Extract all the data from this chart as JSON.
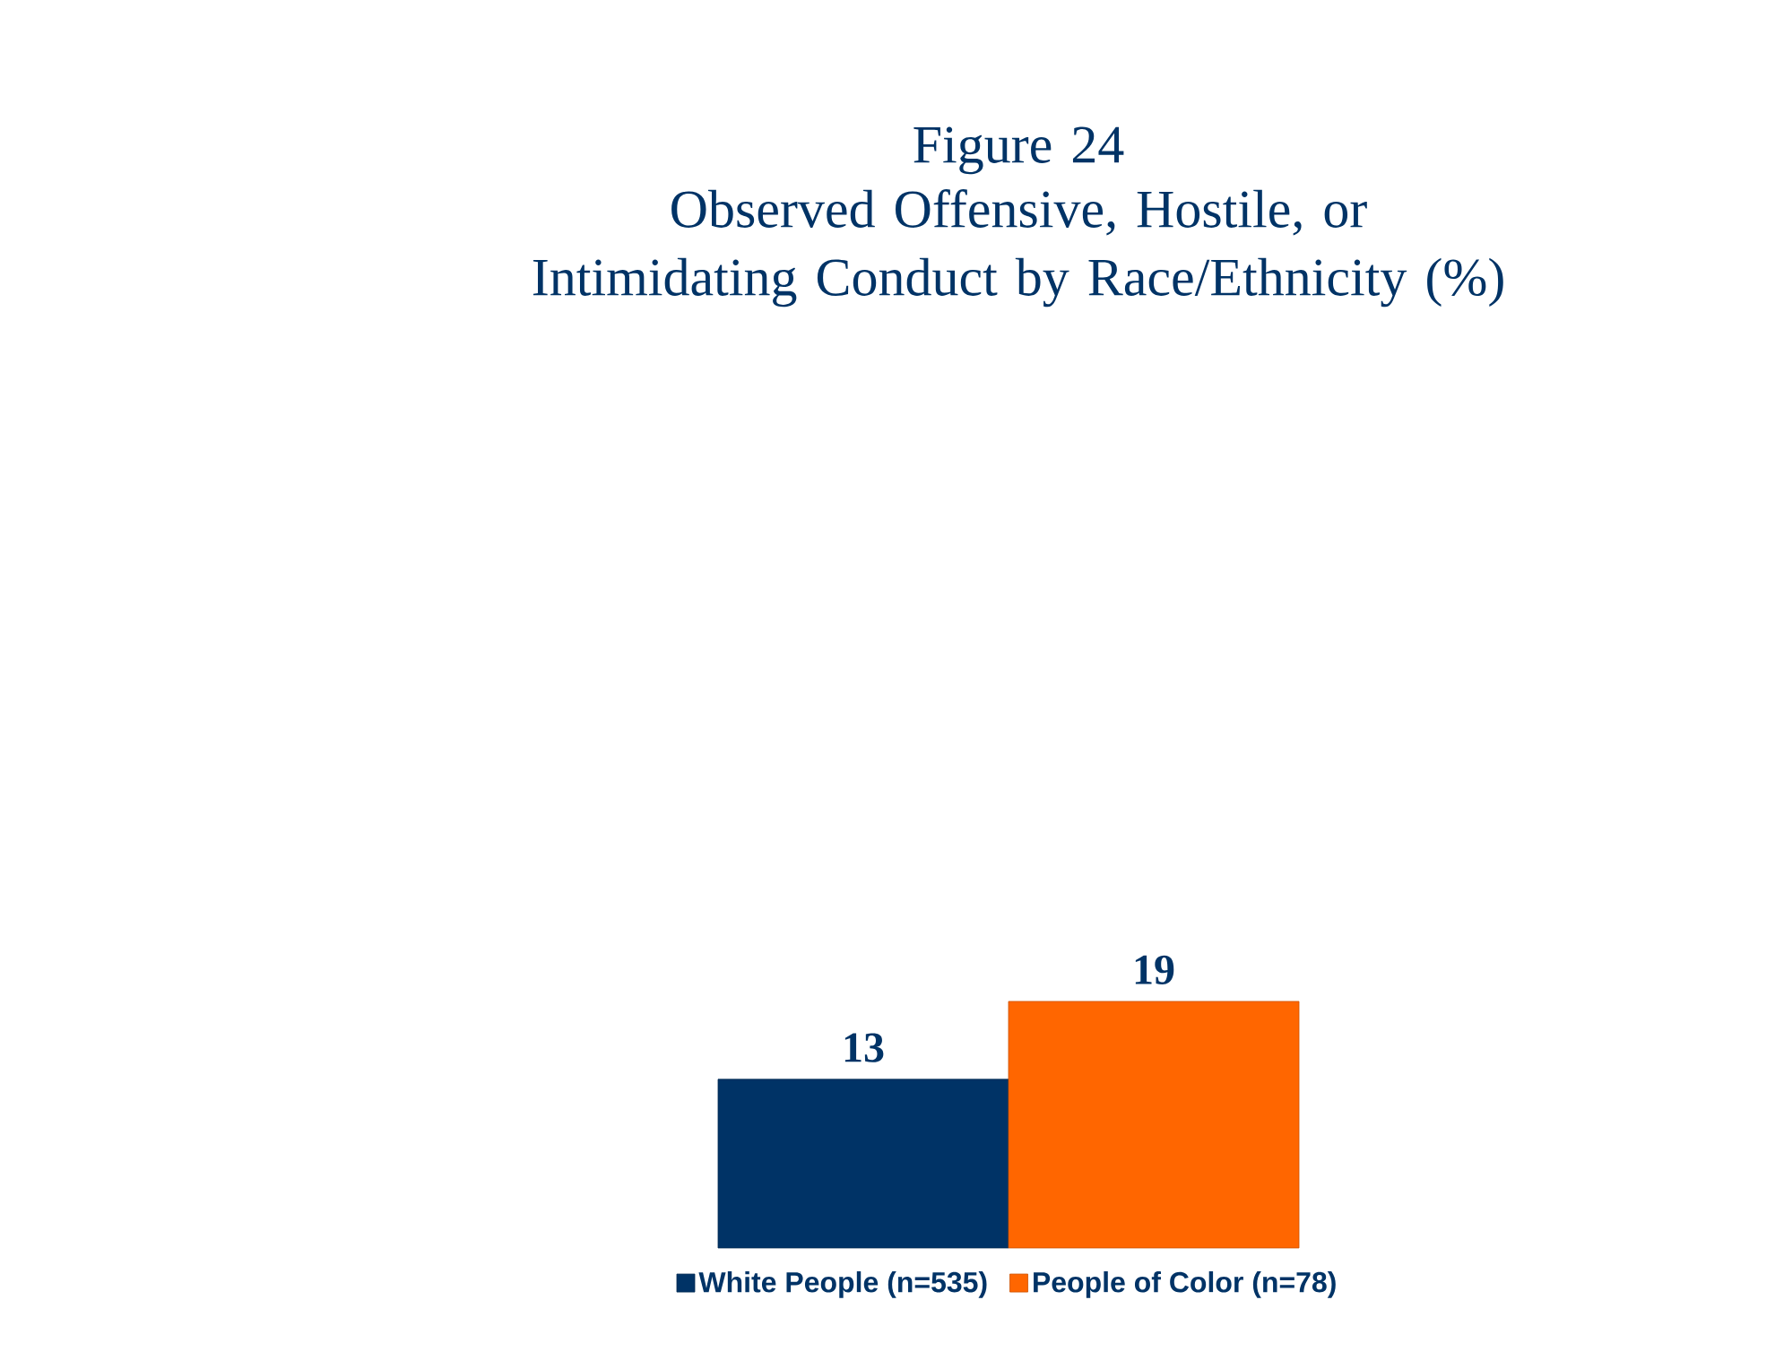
{
  "chart_data": {
    "type": "bar",
    "title": "Figure 24",
    "subtitle": "Observed Offensive, Hostile, or Intimidating Conduct by Race/Ethnicity (%)",
    "categories": [
      null
    ],
    "series": [
      {
        "name": "White People (n=535)",
        "color": "#003366",
        "values": [
          13
        ]
      },
      {
        "name": "People of Color (n=78)",
        "color": "#ff6600",
        "values": [
          19
        ]
      }
    ],
    "data_labels": true,
    "legend": "bottom"
  }
}
